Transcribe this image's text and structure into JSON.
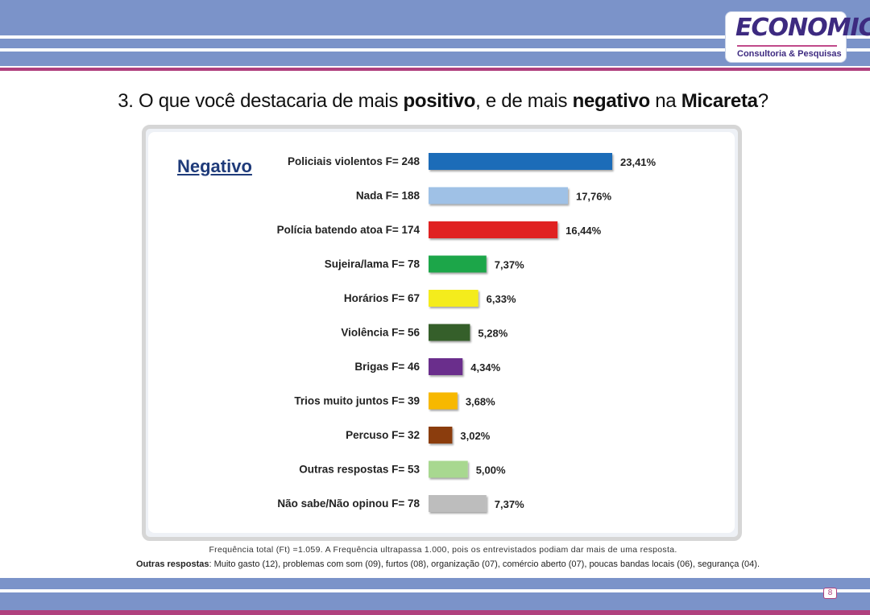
{
  "logo": {
    "name": "ECONOMIC",
    "tagline": "Consultoria & Pesquisas"
  },
  "title": {
    "prefix": "3. O que você destacaria de mais ",
    "bold1": "positivo",
    "mid1": ", e de mais ",
    "bold2": "negativo",
    "mid2": " na ",
    "bold3": "Micareta",
    "suffix": "?"
  },
  "section_label": "Negativo",
  "chart_data": {
    "type": "bar",
    "orientation": "horizontal",
    "categories": [
      "Policiais violentos  F= 248",
      "Nada  F= 188",
      "Polícia batendo atoa  F= 174",
      "Sujeira/lama  F= 78",
      "Horários  F= 67",
      "Violência  F= 56",
      "Brigas  F= 46",
      "Trios muito juntos  F= 39",
      "Percuso  F= 32",
      "Outras respostas  F= 53",
      "Não sabe/Não opinou  F= 78"
    ],
    "values": [
      23.41,
      17.76,
      16.44,
      7.37,
      6.33,
      5.28,
      4.34,
      3.68,
      3.02,
      5.0,
      7.37
    ],
    "value_labels": [
      "23,41%",
      "17,76%",
      "16,44%",
      "7,37%",
      "6,33%",
      "5,28%",
      "4,34%",
      "3,68%",
      "3,02%",
      "5,00%",
      "7,37%"
    ],
    "colors": [
      "#1b6cb8",
      "#9fc1e6",
      "#e02020",
      "#1fa64a",
      "#f4ec1a",
      "#355e2a",
      "#6a2d8c",
      "#f7b800",
      "#8b3c0d",
      "#a8d890",
      "#bdbdbd"
    ],
    "xlim": [
      0,
      25
    ],
    "grid": false,
    "legend": "none"
  },
  "notes": {
    "frequency": "Frequência total (Ft) =1.059. A Frequência ultrapassa 1.000, pois os entrevistados podiam dar mais de uma resposta.",
    "others_label": "Outras respostas",
    "others_text": ": Muito gasto (12), problemas com som (09), furtos (08), organização (07), comércio aberto (07), poucas bandas locais (06), segurança (04)."
  },
  "page_number": "8"
}
